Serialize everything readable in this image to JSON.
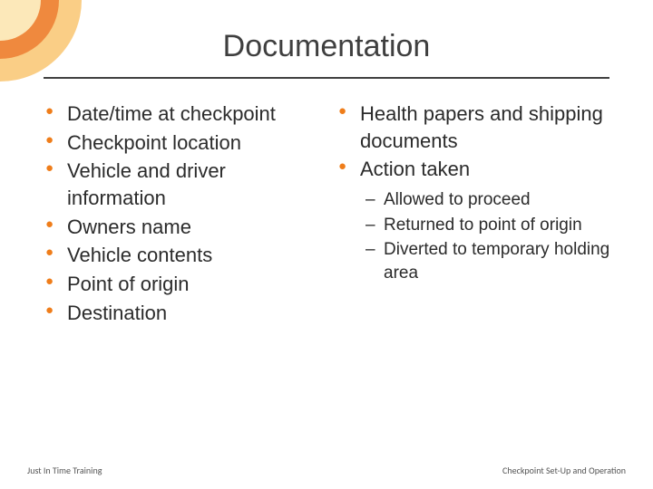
{
  "title": "Documentation",
  "colors": {
    "bullet": "#ef7d1a",
    "text": "#2b2b2b",
    "title": "#3f3f3f",
    "underline": "#404040",
    "arc_outer": "#f6a623",
    "arc_mid": "#e96c1f",
    "arc_inner": "#fdf3c6",
    "background": "#ffffff"
  },
  "typography": {
    "title_fontsize": 34,
    "bullet_fontsize": 22,
    "sub_bullet_fontsize": 19,
    "footer_fontsize": 10,
    "font_family": "Verdana"
  },
  "left_column": {
    "items": [
      "Date/time at checkpoint",
      "Checkpoint location",
      "Vehicle and driver information",
      "Owners name",
      "Vehicle contents",
      "Point of origin",
      "Destination"
    ]
  },
  "right_column": {
    "items": [
      {
        "text": "Health papers and shipping documents",
        "sub": []
      },
      {
        "text": "Action taken",
        "sub": [
          "Allowed to proceed",
          "Returned to point of origin",
          "Diverted to temporary holding area"
        ]
      }
    ]
  },
  "footer": {
    "left": "Just In Time Training",
    "right": "Checkpoint Set-Up and Operation"
  }
}
